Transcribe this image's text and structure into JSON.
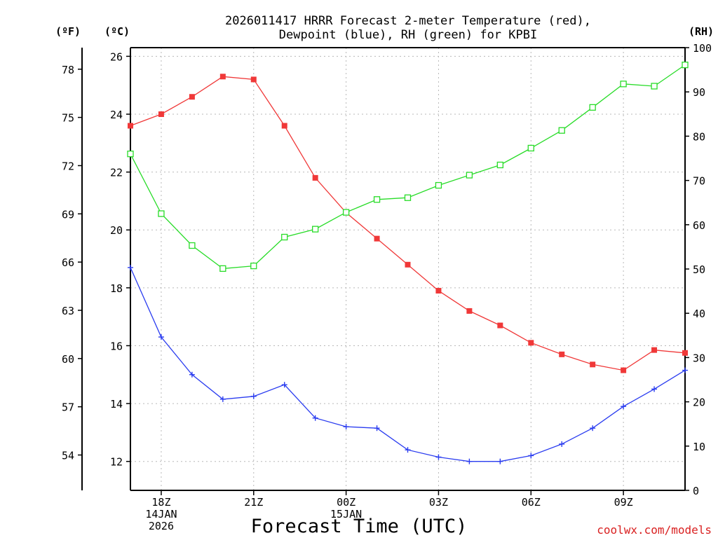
{
  "chart_data": {
    "type": "line",
    "title_lines": [
      "2026011417 HRRR Forecast 2-meter Temperature (red),",
      "Dewpoint (blue), RH (green) for KPBI"
    ],
    "xlabel": "Forecast Time (UTC)",
    "credit": "coolwx.com/models",
    "unit_labels": {
      "fahrenheit": "(ºF)",
      "celsius": "(ºC)",
      "rh": "(RH)"
    },
    "x_hours": [
      17,
      18,
      19,
      20,
      21,
      22,
      23,
      24,
      25,
      26,
      27,
      28,
      29,
      30,
      31,
      32,
      33,
      34,
      35
    ],
    "xlim": [
      17,
      35
    ],
    "x_ticks": [
      {
        "hour": 18,
        "lines": [
          "18Z",
          "14JAN",
          "2026"
        ]
      },
      {
        "hour": 21,
        "lines": [
          "21Z"
        ]
      },
      {
        "hour": 24,
        "lines": [
          "00Z",
          "15JAN"
        ]
      },
      {
        "hour": 27,
        "lines": [
          "03Z"
        ]
      },
      {
        "hour": 30,
        "lines": [
          "06Z"
        ]
      },
      {
        "hour": 33,
        "lines": [
          "09Z"
        ]
      }
    ],
    "celsius_axis": {
      "range": [
        11,
        26.3
      ],
      "ticks": [
        12,
        14,
        16,
        18,
        20,
        22,
        24,
        26
      ]
    },
    "fahrenheit_axis": {
      "ticks": [
        54,
        57,
        60,
        63,
        66,
        69,
        72,
        75,
        78
      ]
    },
    "rh_axis": {
      "range": [
        0,
        100
      ],
      "ticks": [
        0,
        10,
        20,
        30,
        40,
        50,
        60,
        70,
        80,
        90,
        100
      ]
    },
    "series": [
      {
        "name": "Temperature",
        "units": "C",
        "axis": "celsius",
        "color": "#f03838",
        "marker": "filled-square",
        "values": [
          23.6,
          24.0,
          24.6,
          25.3,
          25.2,
          23.6,
          21.8,
          20.6,
          19.7,
          18.8,
          17.9,
          17.2,
          16.7,
          16.1,
          15.7,
          15.35,
          15.15,
          15.85,
          15.75
        ]
      },
      {
        "name": "Dewpoint",
        "units": "C",
        "axis": "celsius",
        "color": "#2a3cf0",
        "marker": "plus",
        "values": [
          18.7,
          16.3,
          15.0,
          14.15,
          14.25,
          14.65,
          13.5,
          13.2,
          13.15,
          12.4,
          12.15,
          12.0,
          12.0,
          12.2,
          12.6,
          13.15,
          13.9,
          14.5,
          15.15
        ]
      },
      {
        "name": "RH",
        "units": "%",
        "axis": "rh",
        "color": "#28dc28",
        "marker": "open-square",
        "values": [
          76,
          62.5,
          55.3,
          50.1,
          50.7,
          57.2,
          59.0,
          62.8,
          65.7,
          66.1,
          68.9,
          71.2,
          73.5,
          77.3,
          81.3,
          86.5,
          91.8,
          91.3,
          96.1
        ]
      }
    ]
  }
}
